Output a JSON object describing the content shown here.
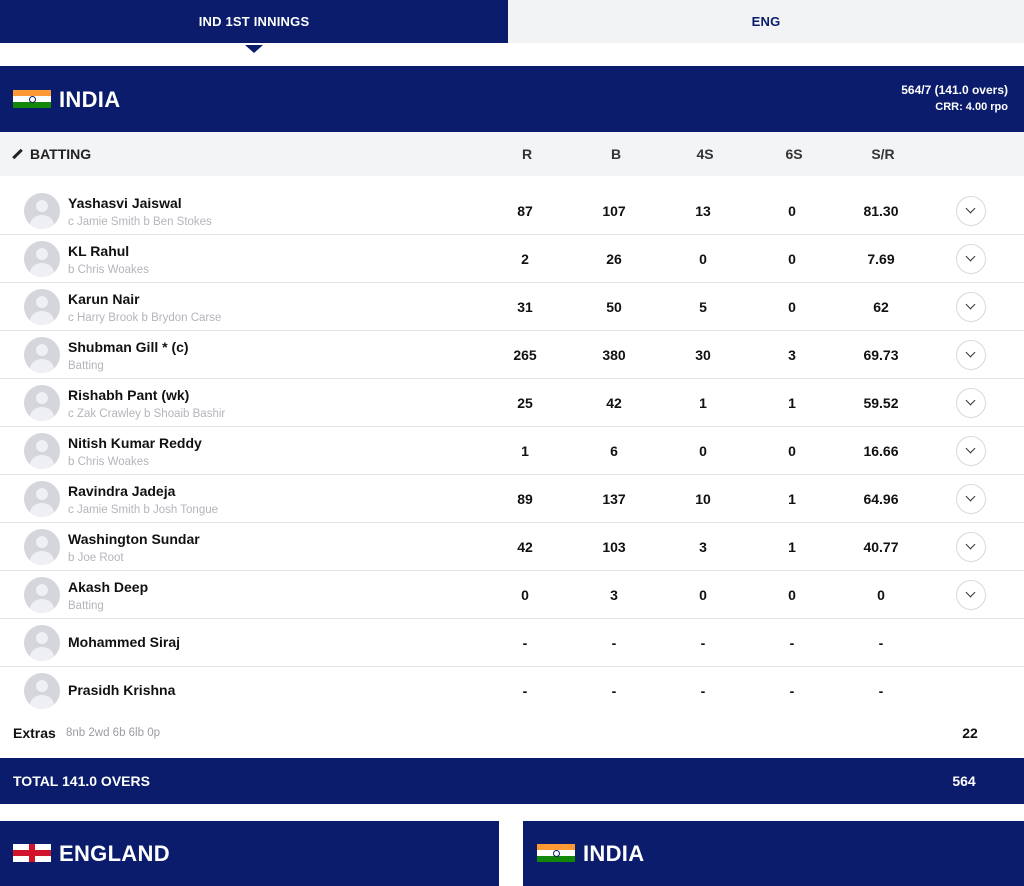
{
  "tabs": [
    {
      "label": "IND 1ST INNINGS",
      "active": true
    },
    {
      "label": "ENG",
      "active": false
    }
  ],
  "team": {
    "name": "INDIA",
    "score": "564/7 (141.0 overs)",
    "crr": "CRR: 4.00 rpo"
  },
  "batting_header": {
    "title": "BATTING",
    "columns": [
      "R",
      "B",
      "4S",
      "6S",
      "S/R"
    ]
  },
  "batters": [
    {
      "name": "Yashasvi Jaiswal",
      "dismissal": "c Jamie Smith b Ben Stokes",
      "r": "87",
      "b": "107",
      "fours": "13",
      "sixes": "0",
      "sr": "81.30"
    },
    {
      "name": "KL Rahul",
      "dismissal": "b Chris Woakes",
      "r": "2",
      "b": "26",
      "fours": "0",
      "sixes": "0",
      "sr": "7.69"
    },
    {
      "name": "Karun Nair",
      "dismissal": "c Harry Brook b Brydon Carse",
      "r": "31",
      "b": "50",
      "fours": "5",
      "sixes": "0",
      "sr": "62"
    },
    {
      "name": "Shubman Gill * (c)",
      "dismissal": "Batting",
      "r": "265",
      "b": "380",
      "fours": "30",
      "sixes": "3",
      "sr": "69.73"
    },
    {
      "name": "Rishabh Pant (wk)",
      "dismissal": "c Zak Crawley b Shoaib Bashir",
      "r": "25",
      "b": "42",
      "fours": "1",
      "sixes": "1",
      "sr": "59.52"
    },
    {
      "name": "Nitish Kumar Reddy",
      "dismissal": "b Chris Woakes",
      "r": "1",
      "b": "6",
      "fours": "0",
      "sixes": "0",
      "sr": "16.66"
    },
    {
      "name": "Ravindra Jadeja",
      "dismissal": "c Jamie Smith b Josh Tongue",
      "r": "89",
      "b": "137",
      "fours": "10",
      "sixes": "1",
      "sr": "64.96"
    },
    {
      "name": "Washington Sundar",
      "dismissal": "b Joe Root",
      "r": "42",
      "b": "103",
      "fours": "3",
      "sixes": "1",
      "sr": "40.77"
    },
    {
      "name": "Akash Deep",
      "dismissal": "Batting",
      "r": "0",
      "b": "3",
      "fours": "0",
      "sixes": "0",
      "sr": "0"
    },
    {
      "name": "Mohammed Siraj",
      "dismissal": "",
      "r": "-",
      "b": "-",
      "fours": "-",
      "sixes": "-",
      "sr": "-"
    },
    {
      "name": "Prasidh Krishna",
      "dismissal": "",
      "r": "-",
      "b": "-",
      "fours": "-",
      "sixes": "-",
      "sr": "-"
    }
  ],
  "extras": {
    "label": "Extras",
    "detail": "8nb 2wd 6b 6lb 0p",
    "value": "22"
  },
  "total": {
    "label": "TOTAL 141.0 OVERS",
    "value": "564"
  },
  "bottom_cards": [
    {
      "name": "ENGLAND",
      "flag": "england-flag"
    },
    {
      "name": "INDIA",
      "flag": "india-flag"
    }
  ],
  "colors": {
    "navy": "#0a1c6b",
    "light_bg": "#f3f4f6"
  }
}
